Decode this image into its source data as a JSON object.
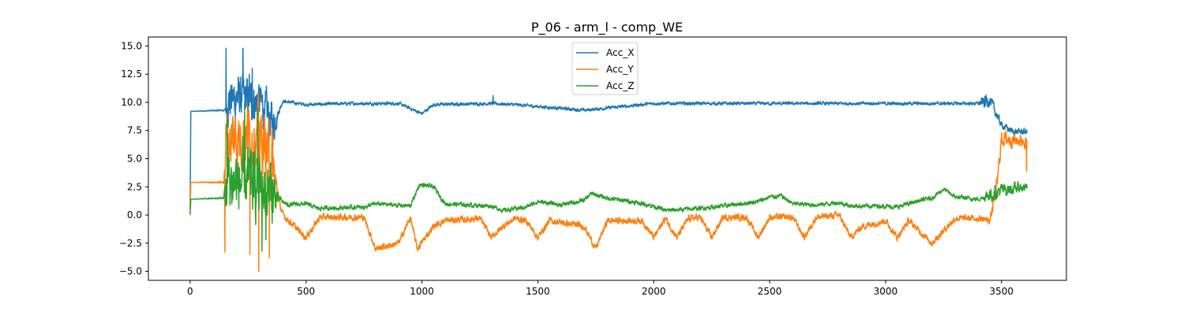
{
  "chart_data": {
    "type": "line",
    "title": "P_06 - arm_l - comp_WE",
    "xlabel": "",
    "ylabel": "",
    "xlim": [
      -180,
      3780
    ],
    "ylim": [
      -5.8,
      15.8
    ],
    "xticks": [
      0,
      500,
      1000,
      1500,
      2000,
      2500,
      3000,
      3500
    ],
    "yticks": [
      -5.0,
      -2.5,
      0.0,
      2.5,
      5.0,
      7.5,
      10.0,
      12.5,
      15.0
    ],
    "xtick_labels": [
      "0",
      "500",
      "1000",
      "1500",
      "2000",
      "2500",
      "3000",
      "3500"
    ],
    "ytick_labels": [
      "−5.0",
      "−2.5",
      "0.0",
      "2.5",
      "5.0",
      "7.5",
      "10.0",
      "12.5",
      "15.0"
    ],
    "grid": false,
    "legend_position": "top-center",
    "series": [
      {
        "name": "Acc_X",
        "color": "#1f77b4",
        "baseline": [
          [
            0,
            0.5
          ],
          [
            3,
            9.2
          ],
          [
            150,
            9.3
          ],
          [
            160,
            10.0
          ],
          [
            200,
            10.5
          ],
          [
            300,
            10.0
          ],
          [
            360,
            8.0
          ],
          [
            400,
            10.1
          ],
          [
            500,
            9.8
          ],
          [
            700,
            9.9
          ],
          [
            900,
            9.9
          ],
          [
            1000,
            9.0
          ],
          [
            1050,
            9.8
          ],
          [
            1300,
            9.9
          ],
          [
            1400,
            9.8
          ],
          [
            1700,
            9.3
          ],
          [
            2000,
            9.9
          ],
          [
            2300,
            9.9
          ],
          [
            2600,
            9.9
          ],
          [
            2900,
            9.9
          ],
          [
            3200,
            9.9
          ],
          [
            3400,
            9.9
          ],
          [
            3450,
            10.2
          ],
          [
            3500,
            8.0
          ],
          [
            3550,
            7.4
          ],
          [
            3610,
            7.4
          ]
        ],
        "noise": [
          [
            0,
            0
          ],
          [
            150,
            0.1
          ],
          [
            160,
            2.0
          ],
          [
            360,
            2.0
          ],
          [
            380,
            0.3
          ],
          [
            400,
            0.15
          ],
          [
            3400,
            0.15
          ],
          [
            3430,
            0.7
          ],
          [
            3500,
            0.3
          ],
          [
            3610,
            0.3
          ]
        ],
        "spikes": [
          [
            155,
            14.8
          ],
          [
            228,
            14.8
          ],
          [
            255,
            12.5
          ],
          [
            268,
            13.0
          ],
          [
            305,
            11.0
          ],
          [
            1307,
            10.6
          ]
        ]
      },
      {
        "name": "Acc_Y",
        "color": "#ff7f0e",
        "baseline": [
          [
            0,
            0.5
          ],
          [
            3,
            2.9
          ],
          [
            145,
            2.9
          ],
          [
            155,
            6.5
          ],
          [
            200,
            7.0
          ],
          [
            300,
            7.0
          ],
          [
            350,
            5.0
          ],
          [
            380,
            1.5
          ],
          [
            400,
            0.0
          ],
          [
            500,
            -2.0
          ],
          [
            560,
            -0.2
          ],
          [
            750,
            -0.2
          ],
          [
            800,
            -3.0
          ],
          [
            900,
            -2.5
          ],
          [
            950,
            -0.2
          ],
          [
            980,
            -3.0
          ],
          [
            1050,
            -1.0
          ],
          [
            1100,
            -0.5
          ],
          [
            1250,
            -0.3
          ],
          [
            1300,
            -2.0
          ],
          [
            1350,
            -1.0
          ],
          [
            1400,
            -0.3
          ],
          [
            1450,
            -0.5
          ],
          [
            1500,
            -2.0
          ],
          [
            1550,
            -0.5
          ],
          [
            1700,
            -1.0
          ],
          [
            1750,
            -3.0
          ],
          [
            1800,
            -0.5
          ],
          [
            1950,
            -0.5
          ],
          [
            2000,
            -2.0
          ],
          [
            2050,
            -0.3
          ],
          [
            2100,
            -2.0
          ],
          [
            2150,
            -0.3
          ],
          [
            2200,
            -0.2
          ],
          [
            2250,
            -2.0
          ],
          [
            2300,
            -0.2
          ],
          [
            2400,
            -0.2
          ],
          [
            2450,
            -2.0
          ],
          [
            2500,
            -0.2
          ],
          [
            2600,
            -0.2
          ],
          [
            2650,
            -2.0
          ],
          [
            2700,
            -0.2
          ],
          [
            2800,
            0.0
          ],
          [
            2850,
            -2.0
          ],
          [
            2900,
            -1.0
          ],
          [
            3000,
            -0.5
          ],
          [
            3050,
            -2.0
          ],
          [
            3100,
            -0.5
          ],
          [
            3200,
            -2.5
          ],
          [
            3300,
            -0.3
          ],
          [
            3400,
            -0.3
          ],
          [
            3450,
            -0.5
          ],
          [
            3480,
            2.5
          ],
          [
            3500,
            6.8
          ],
          [
            3610,
            6.5
          ]
        ],
        "noise": [
          [
            0,
            0
          ],
          [
            145,
            0.1
          ],
          [
            155,
            3.0
          ],
          [
            355,
            3.0
          ],
          [
            380,
            0.5
          ],
          [
            400,
            0.3
          ],
          [
            3450,
            0.3
          ],
          [
            3470,
            0.8
          ],
          [
            3610,
            0.5
          ]
        ],
        "spikes": [
          [
            150,
            -3.3
          ],
          [
            258,
            -3.5
          ],
          [
            296,
            -5.0
          ],
          [
            342,
            -3.8
          ],
          [
            3608,
            3.9
          ]
        ]
      },
      {
        "name": "Acc_Z",
        "color": "#2ca02c",
        "baseline": [
          [
            0,
            0.0
          ],
          [
            3,
            1.4
          ],
          [
            145,
            1.5
          ],
          [
            160,
            3.0
          ],
          [
            250,
            3.0
          ],
          [
            350,
            2.0
          ],
          [
            380,
            1.5
          ],
          [
            420,
            0.9
          ],
          [
            500,
            1.0
          ],
          [
            550,
            0.6
          ],
          [
            750,
            0.7
          ],
          [
            800,
            1.0
          ],
          [
            950,
            0.8
          ],
          [
            990,
            2.7
          ],
          [
            1050,
            2.5
          ],
          [
            1100,
            1.0
          ],
          [
            1300,
            0.8
          ],
          [
            1350,
            0.4
          ],
          [
            1450,
            0.7
          ],
          [
            1500,
            1.2
          ],
          [
            1600,
            0.9
          ],
          [
            1700,
            1.3
          ],
          [
            1730,
            1.9
          ],
          [
            1800,
            1.5
          ],
          [
            1900,
            1.2
          ],
          [
            2000,
            0.8
          ],
          [
            2050,
            0.4
          ],
          [
            2200,
            0.6
          ],
          [
            2300,
            0.8
          ],
          [
            2450,
            1.2
          ],
          [
            2500,
            1.6
          ],
          [
            2550,
            1.7
          ],
          [
            2600,
            1.0
          ],
          [
            2700,
            0.9
          ],
          [
            2800,
            1.1
          ],
          [
            2850,
            0.8
          ],
          [
            3000,
            0.8
          ],
          [
            3050,
            0.7
          ],
          [
            3100,
            1.0
          ],
          [
            3150,
            1.3
          ],
          [
            3200,
            1.5
          ],
          [
            3250,
            2.3
          ],
          [
            3300,
            1.6
          ],
          [
            3400,
            1.4
          ],
          [
            3450,
            1.8
          ],
          [
            3500,
            2.2
          ],
          [
            3610,
            2.5
          ]
        ],
        "noise": [
          [
            0,
            0
          ],
          [
            145,
            0.1
          ],
          [
            155,
            3.0
          ],
          [
            355,
            3.0
          ],
          [
            380,
            0.4
          ],
          [
            400,
            0.2
          ],
          [
            3420,
            0.2
          ],
          [
            3450,
            0.7
          ],
          [
            3610,
            0.4
          ]
        ],
        "spikes": [
          [
            160,
            8.5
          ],
          [
            235,
            10.0
          ],
          [
            292,
            9.5
          ],
          [
            310,
            -3.2
          ],
          [
            327,
            -2.2
          ]
        ]
      }
    ]
  }
}
